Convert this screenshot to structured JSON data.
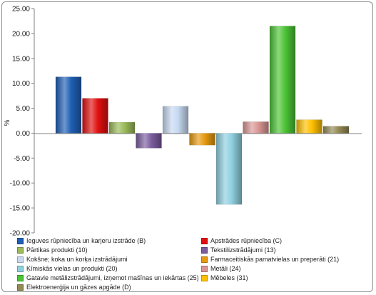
{
  "chart_data": {
    "type": "bar",
    "ylabel": "%",
    "ylim": [
      -20,
      25
    ],
    "yticks": [
      "25.00",
      "20.00",
      "15.00",
      "10.00",
      "5.00",
      "0.00",
      "-5.00",
      "-10.00",
      "-15.00",
      "-20.00"
    ],
    "grid": false,
    "legend_position": "bottom",
    "series": [
      {
        "name": "Ieguves rūpniecība un karjeru izstrāde (B)",
        "value": 11.3,
        "color": "#1f5fb4"
      },
      {
        "name": "Apstrādes rūpniecība (C)",
        "value": 7.0,
        "color": "#e01010"
      },
      {
        "name": "Pārtikas produkti (10)",
        "value": 2.2,
        "color": "#9bbb59"
      },
      {
        "name": "Tekstilizstrādājumi (13)",
        "value": -3.0,
        "color": "#7b5d9e"
      },
      {
        "name": "Kokšne; koka un korķa izstrādājumi",
        "value": 5.4,
        "color": "#c6d9f1"
      },
      {
        "name": "Farmaceitiskās pamatvielas un  preperāti (21)",
        "value": -2.4,
        "color": "#e69a10"
      },
      {
        "name": "Ķīmiskās vielas un produkti (20)",
        "value": -14.3,
        "color": "#8fd0e0"
      },
      {
        "name": "Metāli (24)",
        "value": 2.3,
        "color": "#d99694"
      },
      {
        "name": "Gatavie metālizstrādājumi, izņemot mašīnas un iekārtas (25)",
        "value": 21.5,
        "color": "#4cc436"
      },
      {
        "name": "Mēbeles (31)",
        "value": 2.7,
        "color": "#ffc000"
      },
      {
        "name": "Elektroenerģija un gāzes apgāde (D)",
        "value": 1.4,
        "color": "#948a54"
      }
    ]
  }
}
